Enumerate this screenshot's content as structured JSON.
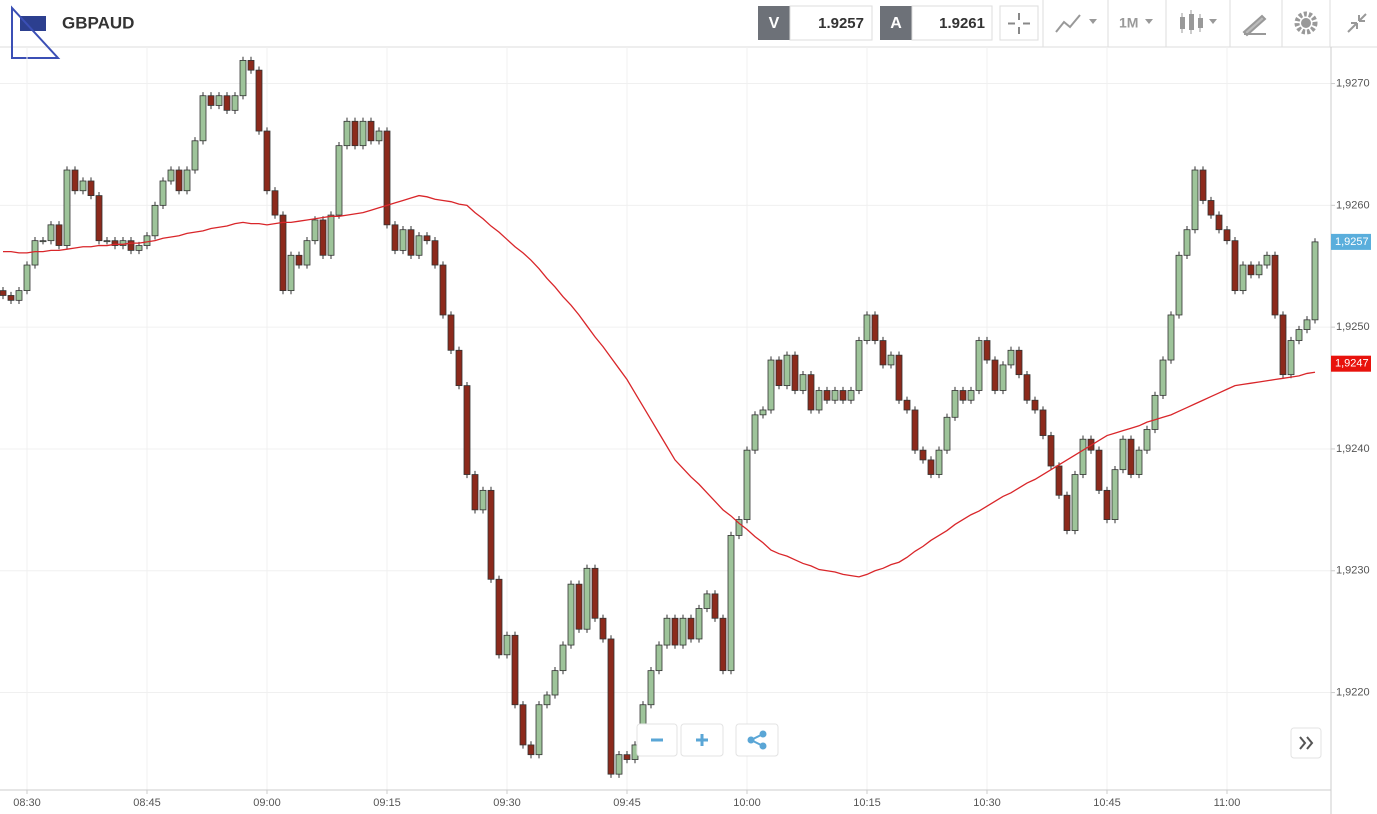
{
  "ui": {
    "symbol": "GBPAUD",
    "sell_label": "V",
    "sell_price": 1.9257,
    "buy_label": "A",
    "buy_price": 1.9261,
    "timeframe": "1M"
  },
  "chart_data": {
    "type": "candlestick",
    "categories": [
      null,
      null,
      null,
      "08:30",
      null,
      null,
      null,
      null,
      null,
      null,
      null,
      null,
      null,
      null,
      null,
      null,
      null,
      null,
      "08:45",
      null,
      null,
      null,
      null,
      null,
      null,
      null,
      null,
      null,
      null,
      null,
      null,
      null,
      null,
      "09:00",
      null,
      null,
      null,
      null,
      null,
      null,
      null,
      null,
      null,
      null,
      null,
      null,
      null,
      null,
      "09:15",
      null,
      null,
      null,
      null,
      null,
      null,
      null,
      null,
      null,
      null,
      null,
      null,
      null,
      null,
      "09:30",
      null,
      null,
      null,
      null,
      null,
      null,
      null,
      null,
      null,
      null,
      null,
      null,
      null,
      null,
      "09:45",
      null,
      null,
      null,
      null,
      null,
      null,
      null,
      null,
      null,
      null,
      null,
      null,
      null,
      null,
      "10:00",
      null,
      null,
      null,
      null,
      null,
      null,
      null,
      null,
      null,
      null,
      null,
      null,
      null,
      null,
      "10:15",
      null,
      null,
      null,
      null,
      null,
      null,
      null,
      null,
      null,
      null,
      null,
      null,
      null,
      null,
      "10:30",
      null,
      null,
      null,
      null,
      null,
      null,
      null,
      null,
      null,
      null,
      null,
      null,
      null,
      null,
      "10:45",
      null,
      null,
      null,
      null,
      null,
      null,
      null,
      null,
      null,
      null,
      null,
      null,
      null,
      null,
      "11:00",
      null,
      null,
      null,
      null,
      null,
      null,
      null,
      null,
      null,
      null,
      null
    ],
    "open": [
      1.9253,
      1.92526,
      1.92522,
      1.9253,
      1.92551,
      1.92571,
      1.92571,
      1.92584,
      1.92567,
      1.92629,
      1.92612,
      1.9262,
      1.92608,
      1.92571,
      1.92571,
      1.92567,
      1.92571,
      1.92563,
      1.92567,
      1.92575,
      1.926,
      1.9262,
      1.92629,
      1.92612,
      1.92629,
      1.92653,
      1.9269,
      1.92682,
      1.9269,
      1.92678,
      1.9269,
      1.92719,
      1.92711,
      1.92661,
      1.92612,
      1.92592,
      1.9253,
      1.92559,
      1.92551,
      1.92571,
      1.92588,
      1.92559,
      1.92592,
      1.92649,
      1.92669,
      1.92649,
      1.92669,
      1.92653,
      1.92661,
      1.92584,
      1.92563,
      1.9258,
      1.92559,
      1.92575,
      1.92571,
      1.92551,
      1.9251,
      1.92481,
      1.92452,
      1.92379,
      1.9235,
      1.92366,
      1.92293,
      1.92231,
      1.92247,
      1.9219,
      1.92157,
      1.92149,
      1.9219,
      1.92198,
      1.92218,
      1.92239,
      1.92289,
      1.92252,
      1.92302,
      1.92261,
      1.92244,
      1.92133,
      1.92149,
      1.92145,
      1.92157,
      1.9219,
      1.92218,
      1.92239,
      1.92261,
      1.92239,
      1.92261,
      1.92244,
      1.92269,
      1.92281,
      1.92261,
      1.92218,
      1.92329,
      1.92342,
      1.92399,
      1.92428,
      1.92432,
      1.92473,
      1.92452,
      1.92477,
      1.92448,
      1.92461,
      1.92432,
      1.92448,
      1.9244,
      1.92448,
      1.9244,
      1.92448,
      1.92489,
      1.9251,
      1.92489,
      1.92469,
      1.92477,
      1.9244,
      1.92432,
      1.92399,
      1.92391,
      1.92379,
      1.92399,
      1.92426,
      1.92448,
      1.9244,
      1.92448,
      1.92489,
      1.92473,
      1.92448,
      1.92469,
      1.92481,
      1.92461,
      1.9244,
      1.92432,
      1.92411,
      1.92386,
      1.92362,
      1.92333,
      1.92379,
      1.92408,
      1.92399,
      1.92366,
      1.92342,
      1.92383,
      1.92408,
      1.92379,
      1.92399,
      1.92416,
      1.92444,
      1.92473,
      1.9251,
      1.92559,
      1.9258,
      1.92629,
      1.92604,
      1.92592,
      1.9258,
      1.92571,
      1.9253,
      1.92551,
      1.92543,
      1.92551,
      1.92559,
      1.9251,
      1.92461,
      1.92489,
      1.92498,
      1.92506
    ],
    "high": [
      1.92533,
      1.92529,
      1.92533,
      1.92554,
      1.92574,
      1.92574,
      1.92587,
      1.92587,
      1.92632,
      1.92632,
      1.92623,
      1.92623,
      1.92611,
      1.92574,
      1.92574,
      1.92574,
      1.92574,
      1.9257,
      1.92578,
      1.92603,
      1.92623,
      1.92632,
      1.92632,
      1.92632,
      1.92656,
      1.92693,
      1.92693,
      1.92693,
      1.92693,
      1.92693,
      1.92722,
      1.92722,
      1.92714,
      1.92664,
      1.92615,
      1.92595,
      1.92562,
      1.92562,
      1.92574,
      1.92591,
      1.92591,
      1.92595,
      1.92652,
      1.92672,
      1.92672,
      1.92672,
      1.92672,
      1.92664,
      1.92664,
      1.92587,
      1.92583,
      1.92583,
      1.92578,
      1.92578,
      1.92574,
      1.92554,
      1.92513,
      1.92484,
      1.92455,
      1.92382,
      1.92369,
      1.92369,
      1.92296,
      1.9225,
      1.9225,
      1.92193,
      1.9216,
      1.92193,
      1.92201,
      1.92221,
      1.92242,
      1.92292,
      1.92292,
      1.92305,
      1.92305,
      1.92264,
      1.92247,
      1.92152,
      1.92152,
      1.9216,
      1.92193,
      1.92221,
      1.92242,
      1.92264,
      1.92264,
      1.92264,
      1.92264,
      1.92272,
      1.92284,
      1.92284,
      1.92264,
      1.92332,
      1.92345,
      1.92402,
      1.92431,
      1.92435,
      1.92476,
      1.92476,
      1.9248,
      1.9248,
      1.92464,
      1.92464,
      1.92451,
      1.92451,
      1.92451,
      1.92451,
      1.92451,
      1.92492,
      1.92513,
      1.92513,
      1.92492,
      1.9248,
      1.9248,
      1.92443,
      1.92435,
      1.92402,
      1.92394,
      1.92402,
      1.92429,
      1.92451,
      1.92451,
      1.92451,
      1.92492,
      1.92492,
      1.92476,
      1.92472,
      1.92484,
      1.92484,
      1.92464,
      1.92443,
      1.92435,
      1.92414,
      1.92389,
      1.92365,
      1.92382,
      1.92411,
      1.92411,
      1.92402,
      1.92369,
      1.92386,
      1.92411,
      1.92411,
      1.92402,
      1.92419,
      1.92447,
      1.92476,
      1.92513,
      1.92562,
      1.92583,
      1.92632,
      1.92632,
      1.92607,
      1.92595,
      1.92583,
      1.92574,
      1.92554,
      1.92554,
      1.92554,
      1.92562,
      1.92562,
      1.92513,
      1.92492,
      1.92501,
      1.92509,
      1.92573
    ],
    "low": [
      1.92523,
      1.92519,
      1.92519,
      1.92527,
      1.92548,
      1.92568,
      1.92568,
      1.92564,
      1.92564,
      1.92609,
      1.92609,
      1.92605,
      1.92568,
      1.92568,
      1.92564,
      1.92564,
      1.9256,
      1.9256,
      1.92564,
      1.92572,
      1.92597,
      1.92617,
      1.92609,
      1.92609,
      1.92626,
      1.9265,
      1.92679,
      1.92679,
      1.92675,
      1.92675,
      1.92687,
      1.92708,
      1.92658,
      1.92609,
      1.92589,
      1.92527,
      1.92527,
      1.92548,
      1.92548,
      1.92568,
      1.92556,
      1.92556,
      1.92589,
      1.92646,
      1.92646,
      1.92646,
      1.9265,
      1.9265,
      1.92581,
      1.9256,
      1.9256,
      1.92556,
      1.92556,
      1.92568,
      1.92548,
      1.92507,
      1.92478,
      1.92449,
      1.92376,
      1.92347,
      1.92347,
      1.9229,
      1.92228,
      1.92228,
      1.92187,
      1.92154,
      1.92146,
      1.92146,
      1.92187,
      1.92195,
      1.92215,
      1.92236,
      1.92249,
      1.92249,
      1.92258,
      1.92241,
      1.9213,
      1.9213,
      1.92142,
      1.92142,
      1.92154,
      1.92187,
      1.92215,
      1.92236,
      1.92236,
      1.92236,
      1.92241,
      1.92241,
      1.92266,
      1.92258,
      1.92215,
      1.92215,
      1.92326,
      1.92339,
      1.92396,
      1.92425,
      1.92429,
      1.92449,
      1.92449,
      1.92445,
      1.92445,
      1.92429,
      1.92429,
      1.92437,
      1.92437,
      1.92437,
      1.92437,
      1.92445,
      1.92486,
      1.92486,
      1.92466,
      1.92466,
      1.92437,
      1.92429,
      1.92396,
      1.92388,
      1.92376,
      1.92376,
      1.92396,
      1.92423,
      1.92437,
      1.92437,
      1.92445,
      1.9247,
      1.92445,
      1.92445,
      1.92466,
      1.92458,
      1.92437,
      1.92429,
      1.92408,
      1.92383,
      1.92359,
      1.9233,
      1.9233,
      1.92376,
      1.92396,
      1.92363,
      1.92339,
      1.92339,
      1.9238,
      1.92376,
      1.92376,
      1.92396,
      1.92413,
      1.92441,
      1.9247,
      1.92507,
      1.92556,
      1.92577,
      1.92601,
      1.92589,
      1.92577,
      1.92568,
      1.92527,
      1.92527,
      1.9254,
      1.9254,
      1.92548,
      1.92507,
      1.92458,
      1.92458,
      1.92486,
      1.92495,
      1.92503
    ],
    "close": [
      1.92526,
      1.92522,
      1.9253,
      1.92551,
      1.92571,
      1.92571,
      1.92584,
      1.92567,
      1.92629,
      1.92612,
      1.9262,
      1.92608,
      1.92571,
      1.92571,
      1.92567,
      1.92571,
      1.92563,
      1.92567,
      1.92575,
      1.926,
      1.9262,
      1.92629,
      1.92612,
      1.92629,
      1.92653,
      1.9269,
      1.92682,
      1.9269,
      1.92678,
      1.9269,
      1.92719,
      1.92711,
      1.92661,
      1.92612,
      1.92592,
      1.9253,
      1.92559,
      1.92551,
      1.92571,
      1.92588,
      1.92559,
      1.92592,
      1.92649,
      1.92669,
      1.92649,
      1.92669,
      1.92653,
      1.92661,
      1.92584,
      1.92563,
      1.9258,
      1.92559,
      1.92575,
      1.92571,
      1.92551,
      1.9251,
      1.92481,
      1.92452,
      1.92379,
      1.9235,
      1.92366,
      1.92293,
      1.92231,
      1.92247,
      1.9219,
      1.92157,
      1.92149,
      1.9219,
      1.92198,
      1.92218,
      1.92239,
      1.92289,
      1.92252,
      1.92302,
      1.92261,
      1.92244,
      1.92133,
      1.92149,
      1.92145,
      1.92157,
      1.9219,
      1.92218,
      1.92239,
      1.92261,
      1.92239,
      1.92261,
      1.92244,
      1.92269,
      1.92281,
      1.92261,
      1.92218,
      1.92329,
      1.92342,
      1.92399,
      1.92428,
      1.92432,
      1.92473,
      1.92452,
      1.92477,
      1.92448,
      1.92461,
      1.92432,
      1.92448,
      1.9244,
      1.92448,
      1.9244,
      1.92448,
      1.92489,
      1.9251,
      1.92489,
      1.92469,
      1.92477,
      1.9244,
      1.92432,
      1.92399,
      1.92391,
      1.92379,
      1.92399,
      1.92426,
      1.92448,
      1.9244,
      1.92448,
      1.92489,
      1.92473,
      1.92448,
      1.92469,
      1.92481,
      1.92461,
      1.9244,
      1.92432,
      1.92411,
      1.92386,
      1.92362,
      1.92333,
      1.92379,
      1.92408,
      1.92399,
      1.92366,
      1.92342,
      1.92383,
      1.92408,
      1.92379,
      1.92399,
      1.92416,
      1.92444,
      1.92473,
      1.9251,
      1.92559,
      1.9258,
      1.92629,
      1.92604,
      1.92592,
      1.9258,
      1.92571,
      1.9253,
      1.92551,
      1.92543,
      1.92551,
      1.92559,
      1.9251,
      1.92461,
      1.92489,
      1.92498,
      1.92506,
      1.9257
    ],
    "moving_average": {
      "color": "#d9262a",
      "values": [
        1.92562,
        1.92562,
        1.92561,
        1.92561,
        1.92562,
        1.92562,
        1.92563,
        1.92563,
        1.92564,
        1.92565,
        1.92566,
        1.92566,
        1.92567,
        1.92567,
        1.92568,
        1.92568,
        1.92569,
        1.92569,
        1.9257,
        1.92571,
        1.92573,
        1.92574,
        1.92575,
        1.92577,
        1.92578,
        1.92579,
        1.92581,
        1.92582,
        1.92583,
        1.92585,
        1.92586,
        1.92585,
        1.92585,
        1.92584,
        1.92585,
        1.92586,
        1.92586,
        1.92587,
        1.92588,
        1.92589,
        1.9259,
        1.92591,
        1.92591,
        1.92592,
        1.92593,
        1.92594,
        1.92596,
        1.92598,
        1.926,
        1.92602,
        1.92604,
        1.92606,
        1.92608,
        1.92607,
        1.92605,
        1.92604,
        1.92603,
        1.92601,
        1.926,
        1.92594,
        1.92589,
        1.92583,
        1.92578,
        1.92572,
        1.92566,
        1.92561,
        1.92555,
        1.92548,
        1.9254,
        1.92533,
        1.92525,
        1.92518,
        1.9251,
        1.92501,
        1.92492,
        1.92484,
        1.92475,
        1.92466,
        1.92457,
        1.92446,
        1.92435,
        1.92424,
        1.92413,
        1.92402,
        1.92391,
        1.92384,
        1.92377,
        1.92371,
        1.92364,
        1.92357,
        1.9235,
        1.92345,
        1.92339,
        1.92334,
        1.92328,
        1.92323,
        1.92317,
        1.92314,
        1.92312,
        1.92309,
        1.92306,
        1.92304,
        1.92301,
        1.923,
        1.92299,
        1.92297,
        1.92296,
        1.92295,
        1.92297,
        1.923,
        1.92302,
        1.92305,
        1.92307,
        1.92311,
        1.92316,
        1.9232,
        1.92325,
        1.92329,
        1.92333,
        1.92338,
        1.92342,
        1.92346,
        1.92349,
        1.92353,
        1.92357,
        1.92361,
        1.92364,
        1.92368,
        1.92372,
        1.92375,
        1.92379,
        1.92383,
        1.92387,
        1.92391,
        1.92395,
        1.92399,
        1.92403,
        1.92407,
        1.92411,
        1.92413,
        1.92415,
        1.92417,
        1.92419,
        1.92422,
        1.92424,
        1.92426,
        1.92428,
        1.92431,
        1.92434,
        1.92437,
        1.9244,
        1.92443,
        1.92446,
        1.92449,
        1.92452,
        1.92453,
        1.92454,
        1.92455,
        1.92456,
        1.92457,
        1.92458,
        1.92459,
        1.9246,
        1.92462,
        1.92463
      ]
    },
    "price_labels": [
      {
        "value": 1.9257,
        "label": "1,9257",
        "color": "#5aaedc"
      },
      {
        "value": 1.9247,
        "label": "1,9247",
        "color": "#e8120c"
      }
    ],
    "up_color": "#9ec49a",
    "down_color": "#8c2a1c",
    "ylim": [
      1.9212,
      1.9273
    ],
    "yticks": [
      {
        "value": 1.922,
        "label": "1,9220"
      },
      {
        "value": 1.923,
        "label": "1,9230"
      },
      {
        "value": 1.924,
        "label": "1,9240"
      },
      {
        "value": 1.925,
        "label": "1,9250"
      },
      {
        "value": 1.926,
        "label": "1,9260"
      },
      {
        "value": 1.927,
        "label": "1,9270"
      }
    ],
    "grid": true
  }
}
